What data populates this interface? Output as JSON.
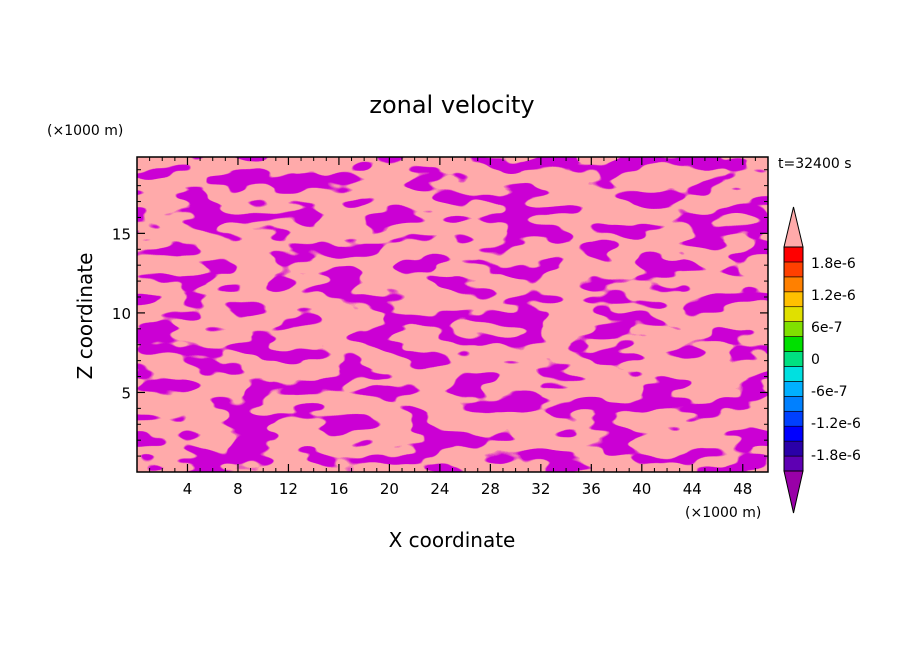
{
  "chart_data": {
    "type": "heatmap",
    "title": "zonal velocity",
    "xlabel": "X coordinate",
    "ylabel": "Z coordinate",
    "x_unit_label": "(×1000 m)",
    "y_unit_label": "(×1000 m)",
    "time_label": "t=32400 s",
    "xlim": [
      0,
      50
    ],
    "ylim": [
      0,
      19.8
    ],
    "x_ticks": [
      4,
      8,
      12,
      16,
      20,
      24,
      28,
      32,
      36,
      40,
      44,
      48
    ],
    "y_ticks": [
      5,
      10,
      15
    ],
    "colorbar": {
      "tick_labels": [
        "1.8e-6",
        "1.2e-6",
        "6e-7",
        "0",
        "-6e-7",
        "-1.2e-6",
        "-1.8e-6"
      ],
      "tick_values": [
        1.8e-06,
        1.2e-06,
        6e-07,
        0,
        -6e-07,
        -1.2e-06,
        -1.8e-06
      ],
      "range": [
        -2.1e-06,
        2.1e-06
      ],
      "colors_bottom_to_top": [
        "#5e00b3",
        "#2a00a8",
        "#0000ff",
        "#0040ff",
        "#0080ff",
        "#00b0ff",
        "#00e0e0",
        "#00e080",
        "#00e000",
        "#80e000",
        "#e0e000",
        "#ffc000",
        "#ff8000",
        "#ff4000",
        "#ff0000"
      ],
      "over_color": "#ffaaaa",
      "under_color": "#9900a8"
    },
    "field": {
      "positive_color": "#ffaaaa",
      "negative_color": "#9900a8",
      "positive_meaning": "above 1.8e-6",
      "negative_meaning": "below -1.8e-6"
    }
  }
}
